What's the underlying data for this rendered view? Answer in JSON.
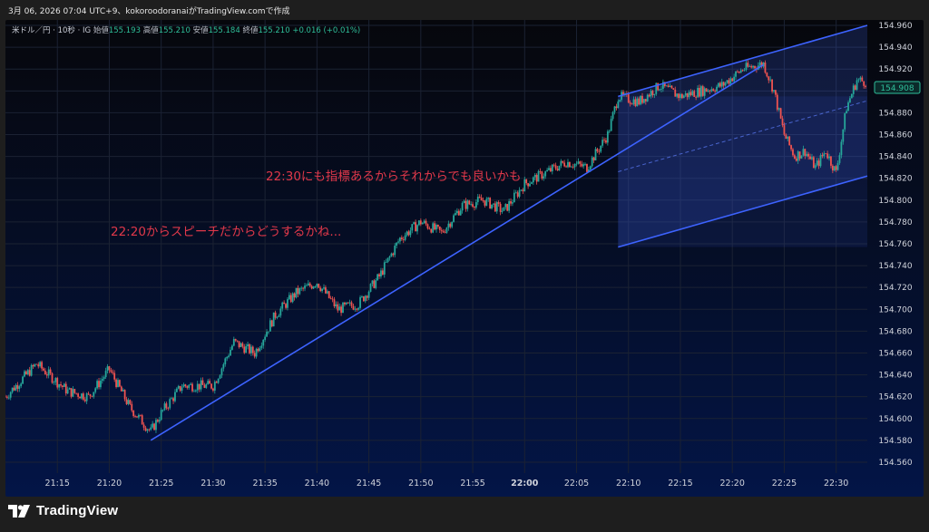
{
  "header": {
    "caption": "3月 06, 2026 07:04 UTC+9、kokoroodoranaiがTradingView.comで作成"
  },
  "legend": {
    "symbol": "米ドル／円 · 10秒 · IG",
    "open_label": "始値",
    "open": "155.193",
    "high_label": "高値",
    "high": "155.210",
    "low_label": "安値",
    "low": "155.184",
    "close_label": "終値",
    "close": "155.210",
    "change": "+0.016 (+0.01%)"
  },
  "annotations": {
    "note1": "22:20からスピーチだからどうするかね...",
    "note2": "22:30にも指標あるからそれからでも良いかも"
  },
  "last_price": "154.908",
  "brand": {
    "name": "TradingView"
  },
  "colors": {
    "up": "#26a69a",
    "down": "#ef5350",
    "trend": "#3d63ff",
    "note": "#e0384a",
    "price_tag": "#2fbf9a"
  },
  "chart_data": {
    "type": "candlestick",
    "symbol": "USDJPY",
    "interval": "10s",
    "ylim": [
      154.55,
      154.965
    ],
    "y_ticks": [
      "154.960",
      "154.940",
      "154.920",
      "154.900",
      "154.880",
      "154.860",
      "154.840",
      "154.820",
      "154.800",
      "154.780",
      "154.760",
      "154.740",
      "154.720",
      "154.700",
      "154.680",
      "154.660",
      "154.640",
      "154.620",
      "154.600",
      "154.580",
      "154.560"
    ],
    "x_ticks": [
      "21:15",
      "21:20",
      "21:25",
      "21:30",
      "21:35",
      "21:40",
      "21:45",
      "21:50",
      "21:55",
      "22:00",
      "22:05",
      "22:10",
      "22:15",
      "22:20",
      "22:25",
      "22:30"
    ],
    "x_start": "21:10",
    "x_end": "22:33",
    "price_path": [
      [
        "21:10",
        154.62
      ],
      [
        "21:13",
        154.65
      ],
      [
        "21:16",
        154.625
      ],
      [
        "21:18",
        154.62
      ],
      [
        "21:20",
        154.645
      ],
      [
        "21:22",
        154.61
      ],
      [
        "21:24",
        154.588
      ],
      [
        "21:25",
        154.605
      ],
      [
        "21:27",
        154.63
      ],
      [
        "21:30",
        154.63
      ],
      [
        "21:32",
        154.67
      ],
      [
        "21:34",
        154.66
      ],
      [
        "21:36",
        154.695
      ],
      [
        "21:38",
        154.715
      ],
      [
        "21:40",
        154.725
      ],
      [
        "21:42",
        154.7
      ],
      [
        "21:44",
        154.705
      ],
      [
        "21:46",
        154.73
      ],
      [
        "21:48",
        154.765
      ],
      [
        "21:50",
        154.78
      ],
      [
        "21:52",
        154.77
      ],
      [
        "21:54",
        154.795
      ],
      [
        "21:56",
        154.8
      ],
      [
        "21:58",
        154.79
      ],
      [
        "22:00",
        154.815
      ],
      [
        "22:02",
        154.825
      ],
      [
        "22:04",
        154.835
      ],
      [
        "22:06",
        154.83
      ],
      [
        "22:07",
        154.845
      ],
      [
        "22:08",
        154.86
      ],
      [
        "22:09",
        154.895
      ],
      [
        "22:11",
        154.89
      ],
      [
        "22:13",
        154.905
      ],
      [
        "22:15",
        154.895
      ],
      [
        "22:17",
        154.9
      ],
      [
        "22:19",
        154.905
      ],
      [
        "22:21",
        154.92
      ],
      [
        "22:23",
        154.925
      ],
      [
        "22:24",
        154.9
      ],
      [
        "22:25",
        154.86
      ],
      [
        "22:26",
        154.84
      ],
      [
        "22:27",
        154.845
      ],
      [
        "22:28",
        154.83
      ],
      [
        "22:29",
        154.845
      ],
      [
        "22:30",
        154.825
      ],
      [
        "22:31",
        154.885
      ],
      [
        "22:32",
        154.91
      ],
      [
        "22:33",
        154.908
      ]
    ],
    "trendlines": [
      {
        "from": [
          "21:24",
          154.58
        ],
        "to": [
          "22:23",
          154.924
        ]
      },
      {
        "from": [
          "22:09",
          154.895
        ],
        "to": [
          "22:33",
          154.96
        ]
      },
      {
        "from": [
          "22:09",
          154.757
        ],
        "to": [
          "22:33",
          154.822
        ]
      }
    ],
    "channel_box": {
      "from": "22:09",
      "to": "22:33"
    }
  }
}
